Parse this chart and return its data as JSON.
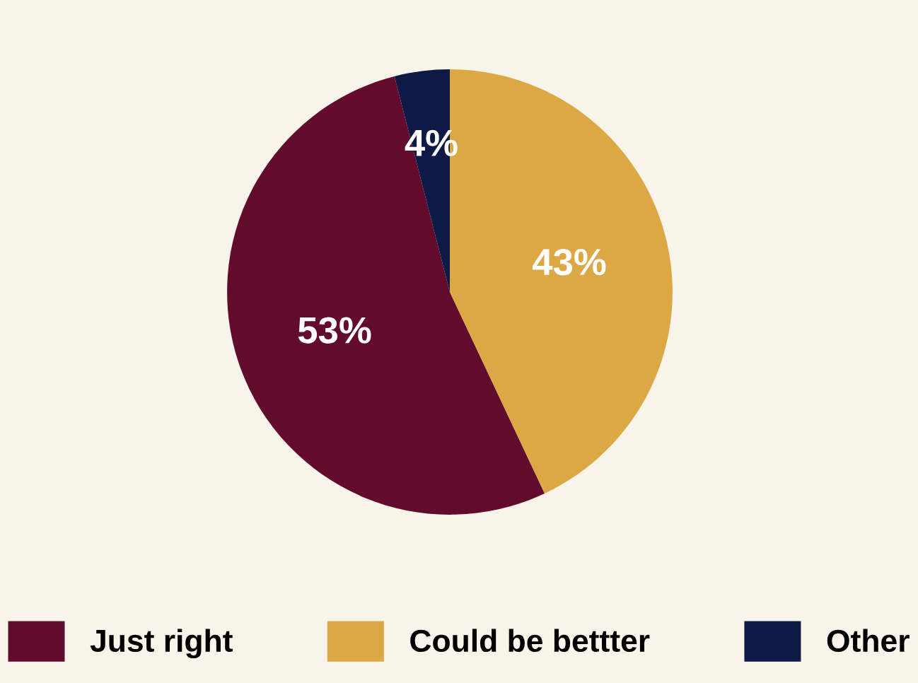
{
  "chart_data": {
    "type": "pie",
    "categories": [
      "Just right",
      "Could be bettter",
      "Other"
    ],
    "values": [
      53,
      43,
      4
    ],
    "colors": [
      "#620b2c",
      "#dca844",
      "#0e1a45"
    ],
    "value_labels": [
      "53%",
      "43%",
      "4%"
    ],
    "legend": "bottom"
  }
}
